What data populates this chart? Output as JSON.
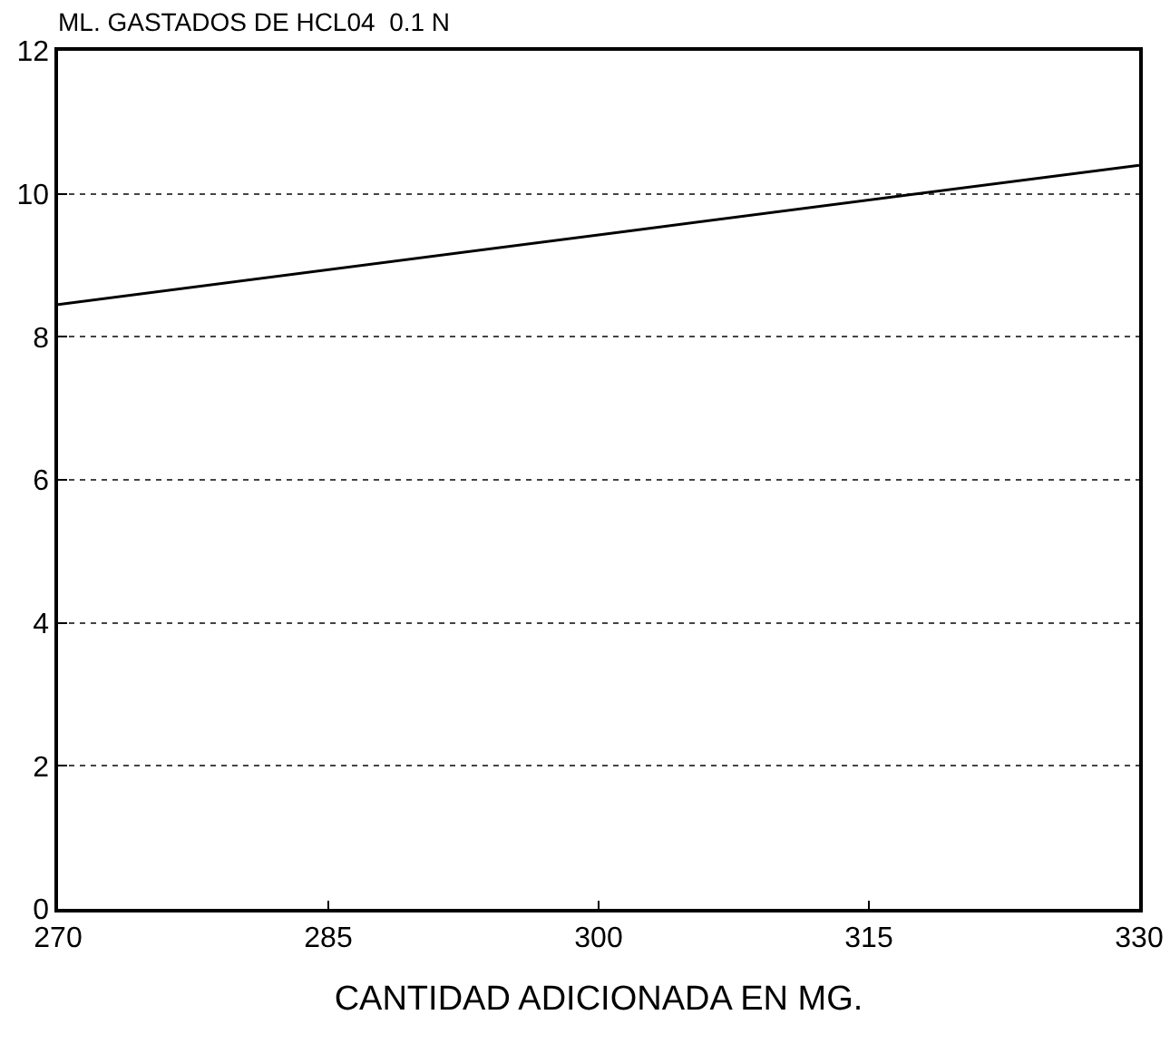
{
  "chart_data": {
    "type": "line",
    "ylabel": "ML. GASTADOS DE HCL04  0.1 N",
    "xlabel": "CANTIDAD ADICIONADA EN MG.",
    "x": [
      270,
      330
    ],
    "series": [
      {
        "color": "#000000",
        "values": [
          8.45,
          10.4
        ]
      }
    ],
    "xlim": [
      270,
      330
    ],
    "xticks": [
      270,
      285,
      300,
      315,
      330
    ],
    "ylim": [
      0,
      12
    ],
    "yticks": [
      0,
      2,
      4,
      6,
      8,
      10,
      12
    ],
    "grid": "y",
    "marker": "none",
    "line_style": "solid"
  }
}
